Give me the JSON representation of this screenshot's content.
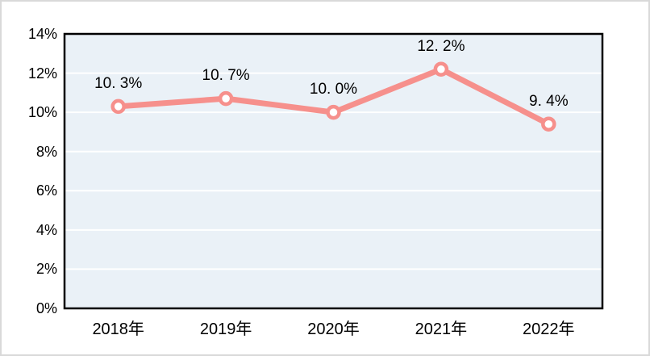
{
  "chart_data": {
    "type": "line",
    "title": "",
    "categories": [
      "2018年",
      "2019年",
      "2020年",
      "2021年",
      "2022年"
    ],
    "values": [
      10.3,
      10.7,
      10.0,
      12.2,
      9.4
    ],
    "data_labels": [
      "10. 3%",
      "10. 7%",
      "10. 0%",
      "12. 2%",
      "9. 4%"
    ],
    "y_ticks": [
      "0%",
      "2%",
      "4%",
      "6%",
      "8%",
      "10%",
      "12%",
      "14%"
    ],
    "ylim": [
      0,
      14
    ],
    "y_tick_step": 2,
    "xlabel": "",
    "ylabel": "",
    "grid": true,
    "legend_position": "none",
    "colors": {
      "line": "#f6908c",
      "marker_fill": "#ffffff",
      "marker_stroke": "#f6908c",
      "plot_background": "#eaf1f7",
      "gridline": "#ffffff",
      "plot_border": "#000000",
      "outer_border": "#d9d9d9",
      "text": "#000000"
    }
  }
}
